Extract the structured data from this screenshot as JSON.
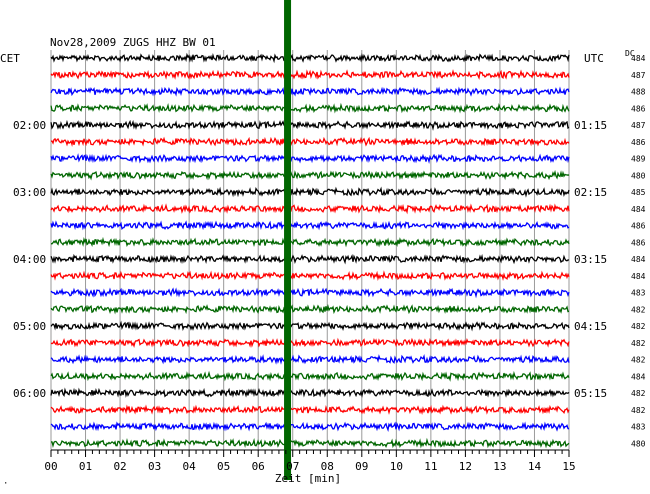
{
  "chart_data": {
    "type": "line",
    "title": "Nov28,2009   ZUGS HHZ BW 01",
    "left_axis_label": "CET",
    "right_axis_label": "UTC",
    "dc_label": "DC",
    "xlabel": "Zeit [min]",
    "corner_mark": "·",
    "x_ticks": [
      "00",
      "01",
      "02",
      "03",
      "04",
      "05",
      "06",
      "07",
      "08",
      "09",
      "10",
      "11",
      "12",
      "13",
      "14",
      "15"
    ],
    "xlim": [
      0,
      15
    ],
    "grid": true,
    "trace_count": 24,
    "trace_colors": [
      "#000000",
      "#ff0000",
      "#0000ff",
      "#006600"
    ],
    "left_time_labels": [
      {
        "trace_index": 4,
        "label": "02:00"
      },
      {
        "trace_index": 8,
        "label": "03:00"
      },
      {
        "trace_index": 12,
        "label": "04:00"
      },
      {
        "trace_index": 16,
        "label": "05:00"
      },
      {
        "trace_index": 20,
        "label": "06:00"
      }
    ],
    "right_time_labels": [
      {
        "trace_index": 4,
        "label": "01:15"
      },
      {
        "trace_index": 8,
        "label": "02:15"
      },
      {
        "trace_index": 12,
        "label": "03:15"
      },
      {
        "trace_index": 16,
        "label": "04:15"
      },
      {
        "trace_index": 20,
        "label": "05:15"
      }
    ],
    "dc_values": [
      "484",
      "487",
      "488",
      "486",
      "487",
      "486",
      "489",
      "480",
      "485",
      "484",
      "486",
      "486",
      "484",
      "484",
      "483",
      "482",
      "482",
      "482",
      "482",
      "484",
      "482",
      "482",
      "483",
      "480"
    ],
    "event_marker": {
      "minute": 6.85,
      "color": "#006600"
    }
  }
}
